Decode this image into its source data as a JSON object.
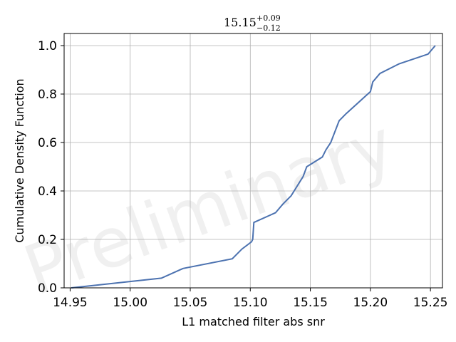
{
  "chart_data": {
    "type": "line",
    "title": {
      "value": "15.15",
      "upper": "+0.09",
      "lower": "−0.12"
    },
    "xlabel": "L1 matched filter abs snr",
    "ylabel": "Cumulative Density Function",
    "watermark": "Preliminary",
    "xlim": [
      14.945,
      15.26
    ],
    "ylim": [
      0.0,
      1.05
    ],
    "xticks": [
      "14.95",
      "15.00",
      "15.05",
      "15.10",
      "15.15",
      "15.20",
      "15.25"
    ],
    "yticks": [
      "0.0",
      "0.2",
      "0.4",
      "0.6",
      "0.8",
      "1.0"
    ],
    "grid": true,
    "line_color": "#4c72b0",
    "series": [
      {
        "x": [
          14.951,
          15.026,
          15.044,
          15.085,
          15.093,
          15.101,
          15.102,
          15.103,
          15.121,
          15.127,
          15.134,
          15.144,
          15.147,
          15.16,
          15.163,
          15.167,
          15.174,
          15.18,
          15.2,
          15.202,
          15.208,
          15.224,
          15.248,
          15.254
        ],
        "y": [
          0.0,
          0.04,
          0.08,
          0.12,
          0.16,
          0.19,
          0.2,
          0.27,
          0.31,
          0.345,
          0.38,
          0.46,
          0.5,
          0.54,
          0.57,
          0.6,
          0.69,
          0.72,
          0.81,
          0.85,
          0.885,
          0.925,
          0.965,
          1.0
        ]
      }
    ]
  }
}
